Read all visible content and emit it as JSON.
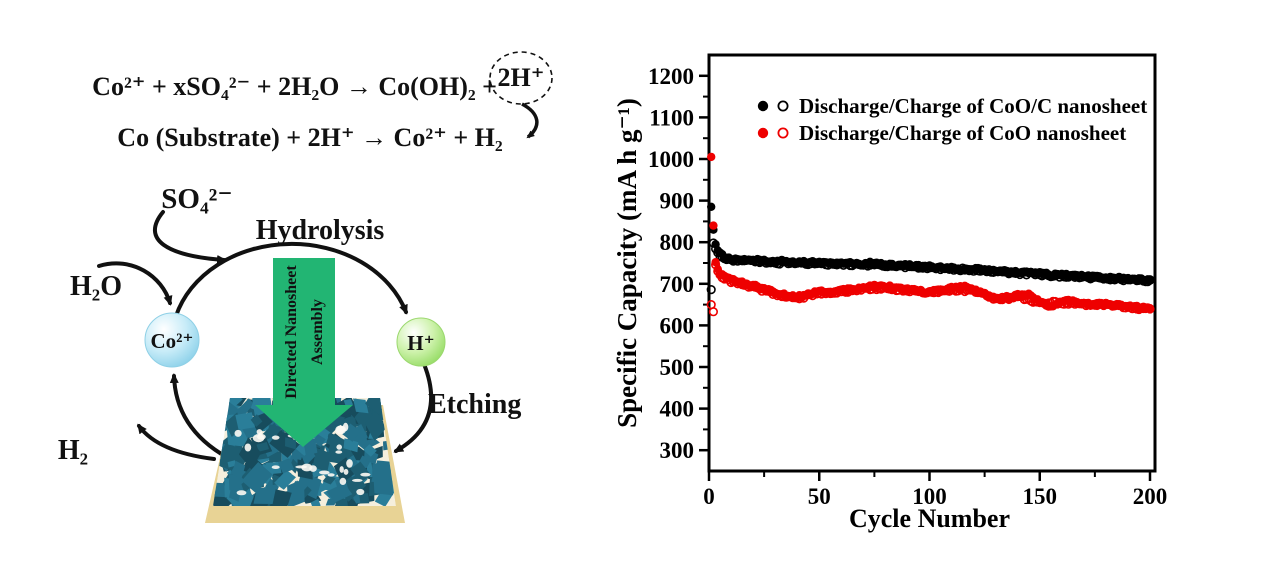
{
  "figure": {
    "background": "#ffffff",
    "equations": {
      "line1_main": "Co²⁺ + xSO₄²⁻ + 2H₂O →  Co(OH)₂ +",
      "line1_circled": "2H⁺",
      "line2": "Co (Substrate) + 2H⁺ → Co²⁺ + H₂"
    },
    "diagram": {
      "labels": {
        "so4": "SO₄²⁻",
        "hydrolysis": "Hydrolysis",
        "h2o": "H₂O",
        "co_ion": "Co²⁺",
        "h_ion": "H⁺",
        "etching": "Etching",
        "h2": "H₂",
        "assembly_line1": "Directed Nanosheet",
        "assembly_line2": "Assembly"
      },
      "colors": {
        "arrow_green": "#22b573",
        "assembly_text": "#0d3b22",
        "substrate_tan": "#e8d395",
        "nanosheet_teal_1": "#1d5e72",
        "nanosheet_teal_2": "#24708a",
        "nanosheet_teal_3": "#2a7e99",
        "nanosheet_teal_4": "#174c5d",
        "nanosheet_gap_cream": "#f5efdd",
        "speckle_white": "#fdfbf4",
        "co_sphere_blue": "#aee4f4",
        "h_sphere_green": "#b4ec8e",
        "ink_black": "#111111"
      }
    }
  },
  "chart_data": {
    "type": "scatter",
    "title": "",
    "xlabel": "Cycle Number",
    "ylabel": "Specific Capacity (mA h g⁻¹)",
    "xlim": [
      0,
      200
    ],
    "ylim": [
      250,
      1250
    ],
    "x_major_ticks": [
      0,
      50,
      100,
      150,
      200
    ],
    "x_minor_ticks": [
      25,
      75,
      125,
      175
    ],
    "y_major_ticks": [
      300,
      400,
      500,
      600,
      700,
      800,
      900,
      1000,
      1100,
      1200
    ],
    "y_minor_ticks": [
      350,
      450,
      550,
      650,
      750,
      850,
      950,
      1050,
      1150
    ],
    "grid": false,
    "legend_position": "top-inside",
    "legend": [
      {
        "label": "Discharge/Charge of CoO/C nanosheet",
        "color": "#000000"
      },
      {
        "label": "Discharge/Charge of CoO nanosheet",
        "color": "#ee0000"
      }
    ],
    "cycles_per_series": 200,
    "series": [
      {
        "name": "CoO/C nanosheet discharge",
        "marker": "filled-circle",
        "color": "#000000",
        "anchors": [
          [
            1,
            885
          ],
          [
            2,
            830
          ],
          [
            3,
            795
          ],
          [
            4,
            780
          ],
          [
            5,
            772
          ],
          [
            7,
            765
          ],
          [
            10,
            760
          ],
          [
            15,
            756
          ],
          [
            20,
            757
          ],
          [
            25,
            755
          ],
          [
            30,
            753
          ],
          [
            35,
            755
          ],
          [
            40,
            751
          ],
          [
            45,
            753
          ],
          [
            50,
            751
          ],
          [
            55,
            748
          ],
          [
            60,
            750
          ],
          [
            65,
            748
          ],
          [
            70,
            749
          ],
          [
            75,
            750
          ],
          [
            80,
            747
          ],
          [
            85,
            745
          ],
          [
            90,
            744
          ],
          [
            95,
            742
          ],
          [
            100,
            741
          ],
          [
            110,
            738
          ],
          [
            120,
            735
          ],
          [
            130,
            731
          ],
          [
            140,
            728
          ],
          [
            150,
            725
          ],
          [
            160,
            721
          ],
          [
            170,
            718
          ],
          [
            180,
            715
          ],
          [
            190,
            712
          ],
          [
            200,
            710
          ]
        ]
      },
      {
        "name": "CoO/C nanosheet charge",
        "marker": "open-circle",
        "color": "#000000",
        "anchors": [
          [
            1,
            686
          ],
          [
            2,
            798
          ],
          [
            3,
            784
          ],
          [
            5,
            766
          ],
          [
            10,
            757
          ],
          [
            20,
            754
          ],
          [
            40,
            749
          ],
          [
            60,
            748
          ],
          [
            80,
            745
          ],
          [
            100,
            739
          ],
          [
            120,
            733
          ],
          [
            140,
            726
          ],
          [
            160,
            719
          ],
          [
            180,
            713
          ],
          [
            200,
            708
          ]
        ]
      },
      {
        "name": "CoO nanosheet discharge",
        "marker": "filled-circle",
        "color": "#ee0000",
        "anchors": [
          [
            1,
            1005
          ],
          [
            2,
            840
          ],
          [
            3,
            752
          ],
          [
            4,
            735
          ],
          [
            5,
            725
          ],
          [
            7,
            716
          ],
          [
            10,
            710
          ],
          [
            15,
            703
          ],
          [
            20,
            695
          ],
          [
            25,
            690
          ],
          [
            30,
            678
          ],
          [
            35,
            672
          ],
          [
            40,
            668
          ],
          [
            45,
            674
          ],
          [
            50,
            681
          ],
          [
            55,
            678
          ],
          [
            60,
            684
          ],
          [
            65,
            687
          ],
          [
            70,
            690
          ],
          [
            75,
            695
          ],
          [
            80,
            692
          ],
          [
            85,
            694
          ],
          [
            90,
            688
          ],
          [
            95,
            682
          ],
          [
            100,
            680
          ],
          [
            105,
            684
          ],
          [
            110,
            689
          ],
          [
            115,
            694
          ],
          [
            120,
            687
          ],
          [
            125,
            673
          ],
          [
            130,
            666
          ],
          [
            135,
            662
          ],
          [
            140,
            672
          ],
          [
            145,
            673
          ],
          [
            150,
            656
          ],
          [
            155,
            646
          ],
          [
            160,
            657
          ],
          [
            165,
            662
          ],
          [
            170,
            652
          ],
          [
            175,
            649
          ],
          [
            180,
            653
          ],
          [
            185,
            649
          ],
          [
            190,
            646
          ],
          [
            195,
            643
          ],
          [
            200,
            641
          ]
        ]
      },
      {
        "name": "CoO nanosheet charge",
        "marker": "open-circle",
        "color": "#ee0000",
        "anchors": [
          [
            1,
            650
          ],
          [
            2,
            633
          ],
          [
            3,
            746
          ],
          [
            4,
            730
          ],
          [
            5,
            720
          ],
          [
            10,
            706
          ],
          [
            20,
            692
          ],
          [
            30,
            675
          ],
          [
            40,
            665
          ],
          [
            50,
            678
          ],
          [
            60,
            681
          ],
          [
            70,
            688
          ],
          [
            80,
            689
          ],
          [
            90,
            685
          ],
          [
            100,
            678
          ],
          [
            110,
            686
          ],
          [
            120,
            684
          ],
          [
            130,
            664
          ],
          [
            140,
            670
          ],
          [
            150,
            654
          ],
          [
            160,
            655
          ],
          [
            170,
            650
          ],
          [
            180,
            651
          ],
          [
            190,
            644
          ],
          [
            200,
            639
          ]
        ]
      }
    ]
  }
}
